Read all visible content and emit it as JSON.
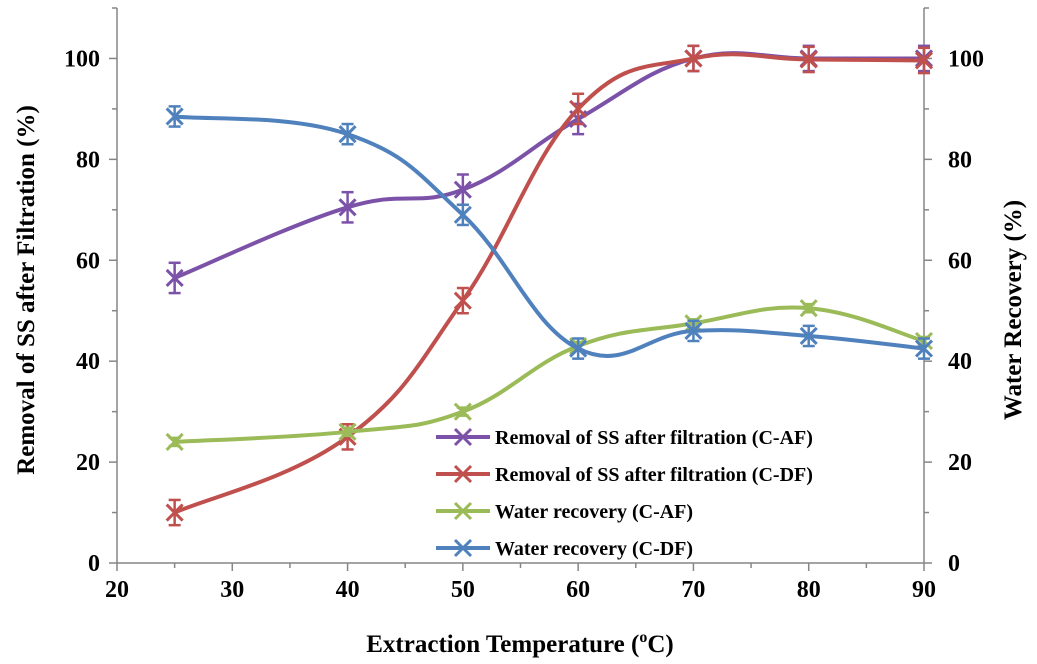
{
  "chart_data": {
    "type": "line",
    "title": "",
    "xlabel": "Extraction Temperature (",
    "xlabel_sup": "o",
    "xlabel_tail": "C)",
    "ylabel": "Removal of SS after Filtration (%)",
    "y2label": "Water Recovery (%)",
    "xlim": [
      20,
      90
    ],
    "ylim": [
      0,
      110
    ],
    "y2lim": [
      0,
      110
    ],
    "xticks": [
      "20",
      "30",
      "40",
      "50",
      "60",
      "70",
      "80",
      "90"
    ],
    "yticks": [
      "0",
      "20",
      "40",
      "60",
      "80",
      "100"
    ],
    "y2ticks": [
      "0",
      "20",
      "40",
      "60",
      "80",
      "100"
    ],
    "grid": false,
    "legend_position": "bottom-right",
    "series": [
      {
        "name": "Removal of SS after filtration (C-AF)",
        "color": "#7B52A8",
        "axis": "left",
        "x": [
          25,
          40,
          50,
          60,
          70,
          80,
          90
        ],
        "y": [
          56.5,
          70.5,
          74,
          88,
          100,
          100,
          100
        ],
        "err": [
          3,
          3,
          3,
          3,
          2.5,
          2.5,
          2.5
        ]
      },
      {
        "name": "Removal of SS after filtration (C-DF)",
        "color": "#C0504D",
        "axis": "left",
        "x": [
          25,
          40,
          50,
          60,
          70,
          80,
          90
        ],
        "y": [
          10,
          25,
          52,
          90,
          100,
          99.8,
          99.6
        ],
        "err": [
          2.5,
          2.5,
          2.5,
          3,
          2.5,
          2.5,
          2.5
        ]
      },
      {
        "name": "Water recovery (C-AF)",
        "color": "#9BBB59",
        "axis": "right",
        "x": [
          25,
          40,
          50,
          60,
          70,
          80,
          90
        ],
        "y": [
          24,
          26,
          30,
          43,
          47.5,
          50.5,
          44
        ],
        "err": [
          0.8,
          0.8,
          0.8,
          0.8,
          0.8,
          0.8,
          0.8
        ]
      },
      {
        "name": "Water recovery (C-DF)",
        "color": "#4F81BD",
        "axis": "right",
        "x": [
          25,
          40,
          50,
          60,
          70,
          80,
          90
        ],
        "y": [
          88.5,
          85,
          69,
          42.5,
          46,
          45,
          42.5
        ],
        "err": [
          2,
          2,
          2,
          2,
          2,
          2,
          2
        ]
      }
    ]
  }
}
